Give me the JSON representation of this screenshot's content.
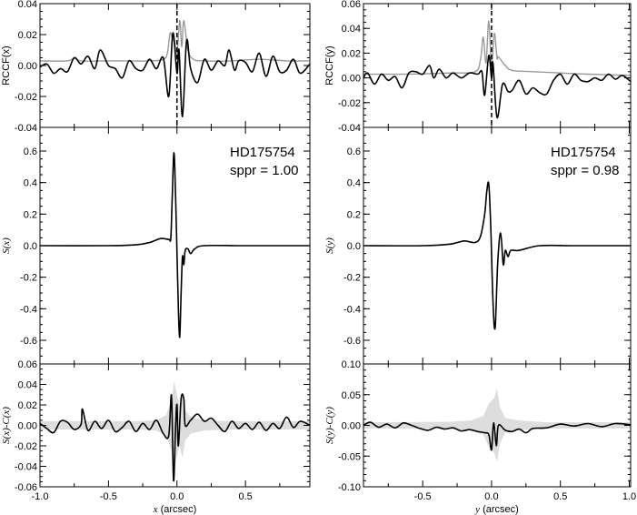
{
  "chart_data": [
    {
      "type": "line",
      "panel": "top-left",
      "ylabel": "RCCF(x)",
      "xlim": [
        -1.0,
        0.97
      ],
      "ylim": [
        -0.04,
        0.04
      ],
      "yticks": [
        -0.04,
        -0.02,
        0.0,
        0.02,
        0.04
      ],
      "ytick_labels": [
        "-0.04",
        "-0.02",
        "0.00",
        "0.02",
        "0.04"
      ],
      "xticks": [
        -1.0,
        -0.5,
        0.0,
        0.5
      ],
      "vline_dashed": 0.0,
      "series": [
        {
          "color": "#999999",
          "x": [
            -1.0,
            -0.8,
            -0.75,
            -0.7,
            -0.5,
            -0.2,
            -0.1,
            -0.07,
            -0.05,
            -0.03,
            -0.02,
            0.0,
            0.02,
            0.035,
            0.05,
            0.08,
            0.12,
            0.2,
            0.4,
            0.6,
            0.8,
            0.97
          ],
          "y": [
            0.003,
            0.003,
            0.005,
            0.003,
            0.003,
            0.003,
            0.004,
            0.008,
            0.021,
            0.016,
            0.017,
            0.008,
            0.029,
            0.012,
            0.029,
            0.01,
            0.004,
            0.003,
            0.003,
            0.004,
            0.003,
            0.003
          ]
        },
        {
          "color": "#000000",
          "x": [
            -1.0,
            -0.95,
            -0.9,
            -0.85,
            -0.8,
            -0.75,
            -0.7,
            -0.65,
            -0.6,
            -0.56,
            -0.5,
            -0.45,
            -0.4,
            -0.35,
            -0.3,
            -0.25,
            -0.2,
            -0.15,
            -0.1,
            -0.06,
            -0.03,
            0.0,
            0.015,
            0.04,
            0.07,
            0.1,
            0.15,
            0.2,
            0.25,
            0.3,
            0.35,
            0.38,
            0.42,
            0.45,
            0.5,
            0.55,
            0.6,
            0.65,
            0.7,
            0.75,
            0.8,
            0.85,
            0.9,
            0.97
          ],
          "y": [
            -0.001,
            0.001,
            -0.005,
            -0.002,
            -0.004,
            0.005,
            0.001,
            0.006,
            -0.002,
            0.01,
            0.0,
            -0.002,
            -0.008,
            0.003,
            -0.002,
            -0.003,
            0.004,
            -0.002,
            0.005,
            -0.02,
            0.021,
            -0.005,
            0.01,
            -0.033,
            0.016,
            -0.002,
            -0.011,
            0.004,
            -0.003,
            0.003,
            0.0,
            0.01,
            -0.003,
            0.003,
            0.002,
            -0.004,
            0.008,
            -0.007,
            0.006,
            -0.004,
            -0.003,
            0.004,
            -0.005,
            0.001
          ]
        }
      ]
    },
    {
      "type": "line",
      "panel": "middle-left",
      "ylabel": "S(x)",
      "xlim": [
        -1.0,
        0.97
      ],
      "ylim": [
        -0.75,
        0.75
      ],
      "yticks": [
        -0.6,
        -0.4,
        -0.2,
        0.0,
        0.2,
        0.4,
        0.6
      ],
      "ytick_labels": [
        "-0.6",
        "-0.4",
        "-0.2",
        "0.0",
        "0.2",
        "0.4",
        "0.6"
      ],
      "xticks": [
        -1.0,
        -0.5,
        0.0,
        0.5
      ],
      "annotation": [
        "HD175754",
        "sppr = 1.00"
      ],
      "series": [
        {
          "color": "#000000",
          "x": [
            -1.0,
            -0.5,
            -0.3,
            -0.2,
            -0.12,
            -0.06,
            -0.045,
            -0.035,
            -0.022,
            -0.01,
            0.0,
            0.01,
            0.02,
            0.03,
            0.04,
            0.05,
            0.06,
            0.08,
            0.1,
            0.13,
            0.2,
            0.5,
            0.97
          ],
          "y": [
            0.0,
            0.0,
            0.005,
            0.02,
            0.045,
            0.04,
            0.05,
            0.3,
            0.59,
            0.3,
            -0.05,
            -0.4,
            -0.58,
            -0.3,
            -0.07,
            -0.12,
            -0.03,
            -0.02,
            -0.05,
            -0.02,
            0.0,
            0.0,
            0.0
          ]
        }
      ]
    },
    {
      "type": "line",
      "panel": "bottom-left",
      "xlabel": "x (arcsec)",
      "ylabel": "S(x)-C(x)",
      "xlim": [
        -1.0,
        0.97
      ],
      "ylim": [
        -0.06,
        0.06
      ],
      "yticks": [
        -0.06,
        -0.04,
        -0.02,
        0.0,
        0.02,
        0.04,
        0.06
      ],
      "ytick_labels": [
        "-0.06",
        "-0.04",
        "-0.02",
        "0.00",
        "0.02",
        "0.04",
        "0.06"
      ],
      "xticks": [
        -1.0,
        -0.5,
        0.0,
        0.5
      ],
      "xtick_labels": [
        "-1.0",
        "-0.5",
        "0.0",
        "0.5"
      ],
      "band": {
        "color": "#dddddd",
        "x": [
          -1.0,
          -0.3,
          -0.15,
          -0.08,
          -0.04,
          -0.02,
          0.0,
          0.02,
          0.04,
          0.06,
          0.1,
          0.2,
          0.4,
          0.97
        ],
        "halfwidth": [
          0.004,
          0.004,
          0.005,
          0.01,
          0.025,
          0.043,
          0.03,
          0.02,
          0.032,
          0.015,
          0.008,
          0.005,
          0.004,
          0.004
        ]
      },
      "series": [
        {
          "color": "#000000",
          "x": [
            -1.0,
            -0.95,
            -0.9,
            -0.85,
            -0.8,
            -0.75,
            -0.7,
            -0.69,
            -0.65,
            -0.6,
            -0.55,
            -0.5,
            -0.45,
            -0.4,
            -0.35,
            -0.3,
            -0.25,
            -0.2,
            -0.15,
            -0.1,
            -0.06,
            -0.04,
            -0.025,
            -0.01,
            0.0,
            0.01,
            0.03,
            0.05,
            0.06,
            0.1,
            0.15,
            0.2,
            0.25,
            0.3,
            0.35,
            0.4,
            0.45,
            0.5,
            0.55,
            0.6,
            0.65,
            0.7,
            0.75,
            0.8,
            0.85,
            0.9,
            0.97
          ],
          "y": [
            0.002,
            -0.003,
            -0.007,
            0.004,
            0.003,
            -0.004,
            0.001,
            0.016,
            -0.005,
            0.004,
            -0.003,
            0.005,
            -0.006,
            -0.002,
            0.004,
            -0.006,
            0.002,
            -0.004,
            0.005,
            -0.008,
            -0.01,
            0.029,
            -0.054,
            0.0,
            0.02,
            -0.02,
            0.026,
            0.026,
            0.0,
            0.005,
            0.011,
            0.004,
            0.007,
            0.0,
            -0.006,
            0.004,
            -0.003,
            0.002,
            -0.004,
            0.003,
            -0.005,
            0.002,
            -0.003,
            0.008,
            -0.002,
            0.004,
            0.0
          ]
        }
      ]
    },
    {
      "type": "line",
      "panel": "top-right",
      "ylabel": "RCCF(y)",
      "xlim": [
        -0.93,
        1.01
      ],
      "ylim": [
        -0.04,
        0.06
      ],
      "yticks": [
        -0.04,
        -0.02,
        0.0,
        0.02,
        0.04,
        0.06
      ],
      "ytick_labels": [
        "-0.04",
        "-0.02",
        "0.00",
        "0.02",
        "0.04",
        "0.06"
      ],
      "xticks": [
        -0.5,
        0.0,
        0.5,
        1.0
      ],
      "vline_dashed": 0.0,
      "series": [
        {
          "color": "#999999",
          "x": [
            -0.93,
            -0.6,
            -0.3,
            -0.12,
            -0.08,
            -0.06,
            -0.04,
            -0.02,
            0.0,
            0.02,
            0.04,
            0.05,
            0.1,
            0.15,
            0.3,
            0.5,
            0.7,
            1.01
          ],
          "y": [
            0.003,
            0.003,
            0.004,
            0.005,
            0.015,
            0.033,
            0.012,
            0.046,
            0.01,
            0.036,
            0.016,
            0.017,
            0.01,
            0.006,
            0.005,
            0.004,
            0.003,
            0.002
          ]
        },
        {
          "color": "#000000",
          "x": [
            -0.93,
            -0.9,
            -0.85,
            -0.8,
            -0.75,
            -0.7,
            -0.65,
            -0.6,
            -0.55,
            -0.5,
            -0.45,
            -0.42,
            -0.38,
            -0.33,
            -0.28,
            -0.22,
            -0.16,
            -0.1,
            -0.07,
            -0.05,
            -0.02,
            0.0,
            0.01,
            0.04,
            0.08,
            0.12,
            0.15,
            0.2,
            0.25,
            0.3,
            0.35,
            0.4,
            0.45,
            0.5,
            0.55,
            0.6,
            0.65,
            0.7,
            0.75,
            0.8,
            0.85,
            0.9,
            0.95,
            1.01
          ],
          "y": [
            0.0,
            0.004,
            -0.005,
            0.003,
            -0.002,
            0.001,
            -0.008,
            0.004,
            0.005,
            0.003,
            0.01,
            0.0,
            0.007,
            0.0,
            0.004,
            0.0,
            0.004,
            0.003,
            0.005,
            -0.014,
            0.018,
            0.0,
            0.012,
            -0.032,
            -0.005,
            -0.011,
            -0.01,
            -0.002,
            -0.013,
            -0.008,
            -0.012,
            -0.013,
            -0.002,
            0.003,
            -0.005,
            0.003,
            -0.002,
            -0.003,
            0.0,
            -0.002,
            0.003,
            -0.001,
            0.002,
            -0.003
          ]
        }
      ]
    },
    {
      "type": "line",
      "panel": "middle-right",
      "ylabel": "S(y)",
      "xlim": [
        -0.93,
        1.01
      ],
      "ylim": [
        -0.75,
        0.75
      ],
      "yticks": [
        -0.6,
        -0.4,
        -0.2,
        0.0,
        0.2,
        0.4,
        0.6
      ],
      "ytick_labels": [
        "-0.6",
        "-0.4",
        "-0.2",
        "0.0",
        "0.2",
        "0.4",
        "0.6"
      ],
      "xticks": [
        -0.5,
        0.0,
        0.5,
        1.0
      ],
      "annotation": [
        "HD175754",
        "sppr = 0.98"
      ],
      "series": [
        {
          "color": "#000000",
          "x": [
            -0.93,
            -0.5,
            -0.3,
            -0.2,
            -0.12,
            -0.08,
            -0.05,
            -0.035,
            -0.02,
            -0.005,
            0.01,
            0.026,
            0.045,
            0.066,
            0.085,
            0.1,
            0.12,
            0.14,
            0.2,
            0.35,
            0.6,
            1.01
          ],
          "y": [
            0.0,
            0.0,
            0.01,
            0.03,
            0.02,
            0.06,
            0.2,
            0.34,
            0.39,
            0.1,
            -0.35,
            -0.52,
            -0.1,
            0.08,
            -0.12,
            -0.03,
            -0.07,
            -0.03,
            -0.03,
            0.0,
            0.0,
            0.0
          ]
        }
      ]
    },
    {
      "type": "line",
      "panel": "bottom-right",
      "xlabel": "y (arcsec)",
      "ylabel": "S(y)-C(y)",
      "xlim": [
        -0.93,
        1.01
      ],
      "ylim": [
        -0.1,
        0.1
      ],
      "yticks": [
        -0.1,
        -0.05,
        0.0,
        0.05,
        0.1
      ],
      "ytick_labels": [
        "-0.10",
        "-0.05",
        "0.00",
        "0.05",
        "0.10"
      ],
      "xticks": [
        -0.5,
        0.0,
        0.5,
        1.0
      ],
      "xtick_labels": [
        "-0.5",
        "0.0",
        "0.5",
        "1.0"
      ],
      "band": {
        "color": "#dddddd",
        "x": [
          -0.93,
          -0.3,
          -0.15,
          -0.06,
          -0.02,
          0.0,
          0.02,
          0.04,
          0.06,
          0.1,
          0.2,
          0.4,
          1.01
        ],
        "halfwidth": [
          0.005,
          0.006,
          0.008,
          0.015,
          0.035,
          0.04,
          0.045,
          0.06,
          0.03,
          0.012,
          0.008,
          0.005,
          0.005
        ]
      },
      "series": [
        {
          "color": "#000000",
          "x": [
            -0.93,
            -0.88,
            -0.82,
            -0.76,
            -0.7,
            -0.64,
            -0.58,
            -0.52,
            -0.46,
            -0.4,
            -0.34,
            -0.28,
            -0.22,
            -0.16,
            -0.1,
            -0.05,
            -0.02,
            0.0,
            0.015,
            0.035,
            0.05,
            0.1,
            0.15,
            0.2,
            0.25,
            0.3,
            0.4,
            0.5,
            0.6,
            0.7,
            0.8,
            0.9,
            1.01
          ],
          "y": [
            0.0,
            0.005,
            -0.003,
            0.002,
            -0.004,
            0.004,
            0.0,
            -0.005,
            -0.008,
            -0.003,
            -0.006,
            -0.004,
            -0.009,
            -0.007,
            -0.01,
            -0.012,
            -0.015,
            -0.04,
            0.004,
            -0.033,
            0.0,
            -0.008,
            -0.01,
            -0.006,
            -0.012,
            -0.005,
            -0.004,
            0.002,
            -0.001,
            0.003,
            -0.002,
            0.003,
            0.001
          ]
        }
      ]
    }
  ]
}
